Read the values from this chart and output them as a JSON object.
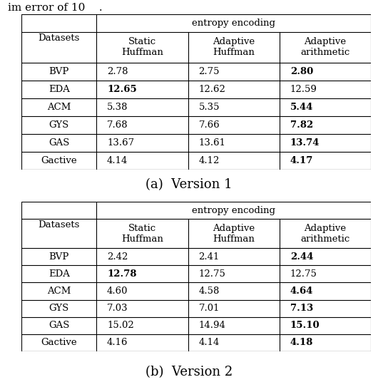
{
  "caption_a": "(a)  Version 1",
  "caption_b": "(b)  Version 2",
  "group_header": "entropy encoding",
  "col0_header": "Datasets",
  "sub_headers": [
    "Static\nHuffman",
    "Adaptive\nHuffman",
    "Adaptive\narithmetic"
  ],
  "table1": {
    "rows": [
      [
        "BVP",
        "2.78",
        "2.75",
        "2.80"
      ],
      [
        "EDA",
        "12.65",
        "12.62",
        "12.59"
      ],
      [
        "ACM",
        "5.38",
        "5.35",
        "5.44"
      ],
      [
        "GYS",
        "7.68",
        "7.66",
        "7.82"
      ],
      [
        "GAS",
        "13.67",
        "13.61",
        "13.74"
      ],
      [
        "Gactive",
        "4.14",
        "4.12",
        "4.17"
      ]
    ],
    "bold": [
      [
        false,
        false,
        false,
        true
      ],
      [
        false,
        true,
        false,
        false
      ],
      [
        false,
        false,
        false,
        true
      ],
      [
        false,
        false,
        false,
        true
      ],
      [
        false,
        false,
        false,
        true
      ],
      [
        false,
        false,
        false,
        true
      ]
    ]
  },
  "table2": {
    "rows": [
      [
        "BVP",
        "2.42",
        "2.41",
        "2.44"
      ],
      [
        "EDA",
        "12.78",
        "12.75",
        "12.75"
      ],
      [
        "ACM",
        "4.60",
        "4.58",
        "4.64"
      ],
      [
        "GYS",
        "7.03",
        "7.01",
        "7.13"
      ],
      [
        "GAS",
        "15.02",
        "14.94",
        "15.10"
      ],
      [
        "Gactive",
        "4.16",
        "4.14",
        "4.18"
      ]
    ],
    "bold": [
      [
        false,
        false,
        false,
        true
      ],
      [
        false,
        true,
        false,
        false
      ],
      [
        false,
        false,
        false,
        true
      ],
      [
        false,
        false,
        false,
        true
      ],
      [
        false,
        false,
        false,
        true
      ],
      [
        false,
        false,
        false,
        true
      ]
    ]
  },
  "top_text": "im error of 10    .",
  "font_size": 9.5,
  "caption_font_size": 13
}
